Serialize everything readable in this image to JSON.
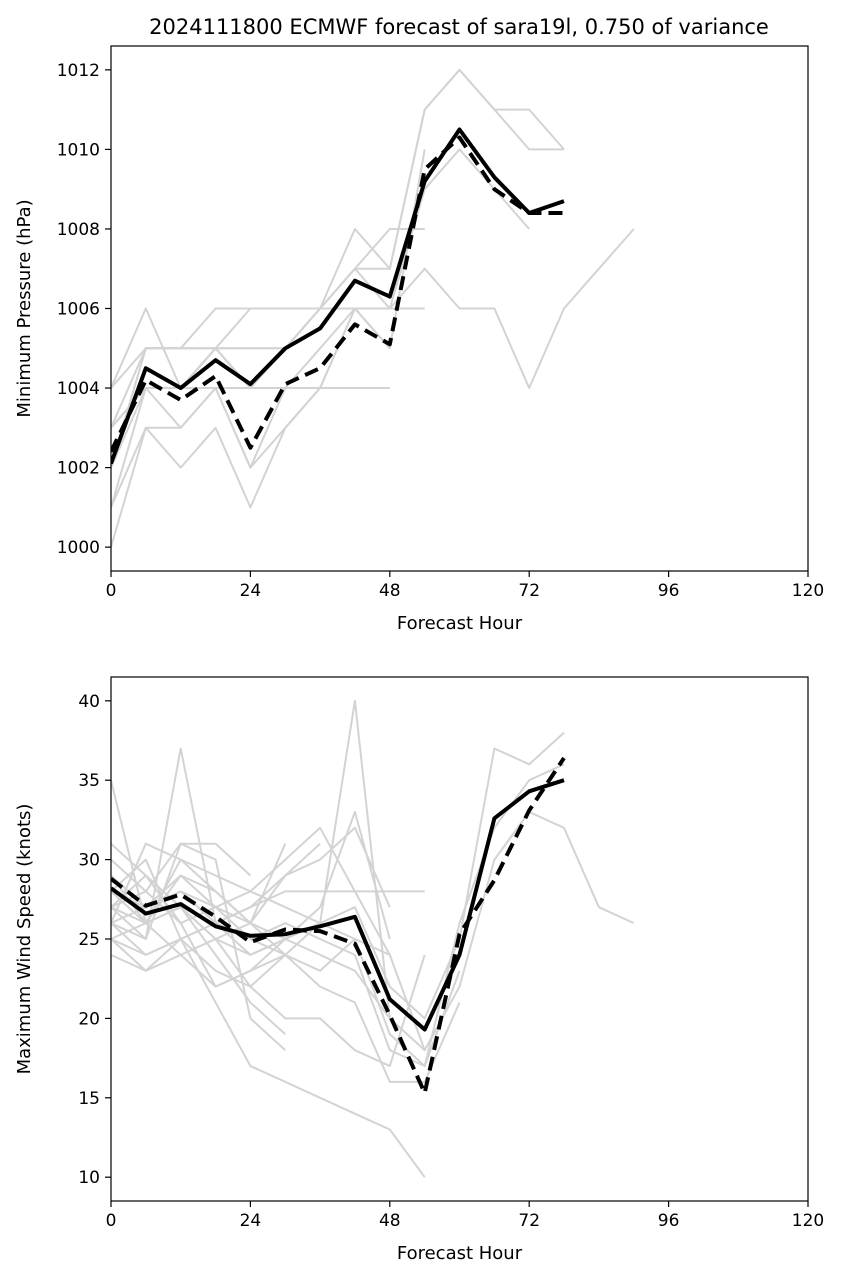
{
  "figure_title": "2024111800 ECMWF forecast of sara19l, 0.750 of variance",
  "colors": {
    "members": "#d3d3d3",
    "mean": "#000000",
    "axes": "#000000"
  },
  "chart_data": [
    {
      "type": "line",
      "title": "2024111800 ECMWF forecast of sara19l, 0.750 of variance",
      "xlabel": "Forecast Hour",
      "ylabel": "Minimum Pressure (hPa)",
      "xlim": [
        0,
        120
      ],
      "ylim": [
        999.4,
        1012.6
      ],
      "xticks": [
        0,
        24,
        48,
        72,
        96,
        120
      ],
      "xtick_labels": [
        "0",
        "24",
        "48",
        "72",
        "96",
        "120"
      ],
      "yticks": [
        1000,
        1002,
        1004,
        1006,
        1008,
        1010,
        1012
      ],
      "ytick_labels": [
        "1000",
        "1002",
        "1004",
        "1006",
        "1008",
        "1010",
        "1012"
      ],
      "grid": false,
      "legend": "none",
      "members": [
        {
          "x": [
            0,
            6,
            12,
            18,
            24,
            30,
            36,
            42,
            48,
            54,
            60,
            66,
            72,
            78
          ],
          "y": [
            1002,
            1005,
            1005,
            1005,
            1005,
            1005,
            1006,
            1008,
            1007,
            1011,
            1012,
            1011,
            1011,
            1010
          ]
        },
        {
          "x": [
            0,
            6,
            12,
            18,
            24,
            30,
            36,
            42,
            48,
            54,
            60,
            66,
            72,
            78
          ],
          "y": [
            1003,
            1004,
            1004,
            1005,
            1004,
            1005,
            1006,
            1007,
            1007,
            1011,
            1012,
            1011,
            1010,
            1010
          ]
        },
        {
          "x": [
            0,
            6,
            12,
            18,
            24,
            30,
            36,
            42,
            48,
            54,
            60,
            66,
            72
          ],
          "y": [
            1002,
            1005,
            1005,
            1005,
            1004,
            1005,
            1006,
            1007,
            1006,
            1009,
            1010,
            1009,
            1008
          ]
        },
        {
          "x": [
            0,
            6,
            12,
            18,
            24,
            30,
            36,
            42,
            48,
            54,
            60,
            66,
            72,
            78,
            84,
            90
          ],
          "y": [
            1004,
            1005,
            1005,
            1005,
            1005,
            1005,
            1006,
            1006,
            1006,
            1007,
            1006,
            1006,
            1004,
            1006,
            1007,
            1008
          ]
        },
        {
          "x": [
            0,
            6,
            12,
            18,
            24,
            30,
            36,
            42,
            48,
            54
          ],
          "y": [
            1003,
            1005,
            1005,
            1006,
            1006,
            1006,
            1006,
            1006,
            1006,
            1006
          ]
        },
        {
          "x": [
            0,
            6,
            12,
            18,
            24,
            30,
            36,
            42,
            48,
            54
          ],
          "y": [
            1004,
            1006,
            1004,
            1005,
            1006,
            1006,
            1006,
            1007,
            1008,
            1008
          ]
        },
        {
          "x": [
            0,
            6,
            12,
            18,
            24,
            30,
            36,
            42,
            48
          ],
          "y": [
            1001,
            1004,
            1004,
            1004,
            1004,
            1004,
            1004,
            1004,
            1004
          ]
        },
        {
          "x": [
            0,
            6,
            12,
            18,
            24,
            30,
            36,
            42,
            48,
            54
          ],
          "y": [
            1000,
            1003,
            1003,
            1004,
            1002,
            1003,
            1004,
            1006,
            1005,
            1010
          ]
        },
        {
          "x": [
            0,
            6,
            12,
            18,
            24,
            30,
            36,
            42,
            48
          ],
          "y": [
            1001,
            1003,
            1002,
            1003,
            1001,
            1003,
            1004,
            1006,
            1005
          ]
        },
        {
          "x": [
            0,
            6,
            12,
            18,
            24,
            30,
            36,
            42,
            48
          ],
          "y": [
            1002,
            1004,
            1003,
            1004,
            1002,
            1004,
            1005,
            1006,
            1005
          ]
        },
        {
          "x": [
            0,
            6,
            12,
            18,
            24,
            30
          ],
          "y": [
            1003,
            1004,
            1004,
            1005,
            1004,
            1005
          ]
        }
      ],
      "series": [
        {
          "style": "solid",
          "x": [
            0,
            6,
            12,
            18,
            24,
            30,
            36,
            42,
            48,
            54,
            60,
            66,
            72,
            78
          ],
          "y": [
            1002.1,
            1004.5,
            1004.0,
            1004.7,
            1004.1,
            1005.0,
            1005.5,
            1006.7,
            1006.3,
            1009.2,
            1010.5,
            1009.3,
            1008.4,
            1008.7
          ]
        },
        {
          "style": "dashed",
          "x": [
            0,
            6,
            12,
            18,
            24,
            30,
            36,
            42,
            48,
            54,
            60,
            66,
            72,
            78
          ],
          "y": [
            1002.4,
            1004.2,
            1003.7,
            1004.3,
            1002.5,
            1004.1,
            1004.5,
            1005.6,
            1005.1,
            1009.5,
            1010.3,
            1009.0,
            1008.4,
            1008.4
          ]
        }
      ]
    },
    {
      "type": "line",
      "title": "",
      "xlabel": "Forecast Hour",
      "ylabel": "Maximum Wind Speed (knots)",
      "xlim": [
        0,
        120
      ],
      "ylim": [
        8.5,
        41.5
      ],
      "xticks": [
        0,
        24,
        48,
        72,
        96,
        120
      ],
      "xtick_labels": [
        "0",
        "24",
        "48",
        "72",
        "96",
        "120"
      ],
      "yticks": [
        10,
        15,
        20,
        25,
        30,
        35,
        40
      ],
      "ytick_labels": [
        "10",
        "15",
        "20",
        "25",
        "30",
        "35",
        "40"
      ],
      "grid": false,
      "legend": "none",
      "members": [
        {
          "x": [
            0,
            6,
            12,
            18,
            24,
            30,
            36,
            42,
            48,
            54,
            60,
            66,
            72,
            78
          ],
          "y": [
            35,
            26,
            27,
            25,
            24,
            25,
            26,
            27,
            22,
            20,
            25,
            37,
            36,
            38
          ]
        },
        {
          "x": [
            0,
            6,
            12,
            18,
            24,
            30,
            36,
            42,
            48,
            54,
            60,
            66,
            72,
            78,
            84,
            90
          ],
          "y": [
            29,
            27,
            28,
            27,
            26,
            25,
            24,
            23,
            20,
            18,
            22,
            30,
            33,
            32,
            27,
            26
          ]
        },
        {
          "x": [
            0,
            6,
            12,
            18,
            24,
            30,
            36,
            42,
            48,
            54,
            60,
            66,
            72,
            78
          ],
          "y": [
            28,
            26,
            29,
            27,
            25,
            26,
            25,
            24,
            18,
            17,
            26,
            32,
            35,
            36
          ]
        },
        {
          "x": [
            0,
            6,
            12,
            18,
            24,
            30,
            36,
            42,
            48,
            54,
            60
          ],
          "y": [
            27,
            25,
            37,
            26,
            25,
            24,
            22,
            21,
            16,
            16,
            21
          ]
        },
        {
          "x": [
            0,
            6,
            12,
            18,
            24,
            30,
            36,
            42,
            48,
            54,
            60
          ],
          "y": [
            26,
            31,
            30,
            29,
            28,
            27,
            26,
            25,
            19,
            17,
            23
          ]
        },
        {
          "x": [
            0,
            6,
            12,
            18,
            24,
            30,
            36,
            42,
            48,
            54
          ],
          "y": [
            25,
            24,
            25,
            26,
            27,
            28,
            28,
            28,
            28,
            28
          ]
        },
        {
          "x": [
            0,
            6,
            12,
            18,
            24,
            30,
            36,
            42,
            48,
            54
          ],
          "y": [
            27,
            28,
            26,
            27,
            28,
            30,
            32,
            28,
            24,
            18
          ]
        },
        {
          "x": [
            0,
            6,
            12,
            18,
            24,
            30,
            36,
            42,
            48
          ],
          "y": [
            29,
            26,
            30,
            28,
            26,
            29,
            30,
            32,
            27
          ]
        },
        {
          "x": [
            0,
            6,
            12,
            18,
            24,
            30,
            36,
            42,
            48
          ],
          "y": [
            26,
            27,
            28,
            26,
            24,
            25,
            27,
            33,
            25
          ]
        },
        {
          "x": [
            0,
            6,
            12,
            18,
            24,
            30,
            36,
            42,
            48
          ],
          "y": [
            24,
            23,
            24,
            22,
            23,
            25,
            26,
            40,
            20
          ]
        },
        {
          "x": [
            0,
            6,
            12,
            18,
            24,
            30,
            36,
            42,
            48,
            54
          ],
          "y": [
            25,
            26,
            27,
            25,
            22,
            20,
            20,
            18,
            17,
            24
          ]
        },
        {
          "x": [
            0,
            6,
            12,
            18,
            24,
            30,
            36,
            42,
            48,
            54
          ],
          "y": [
            26,
            24,
            25,
            21,
            17,
            16,
            15,
            14,
            13,
            10
          ]
        },
        {
          "x": [
            0,
            6,
            12,
            18,
            24,
            30
          ],
          "y": [
            30,
            28,
            31,
            30,
            20,
            18
          ]
        },
        {
          "x": [
            0,
            6,
            12,
            18,
            24,
            30
          ],
          "y": [
            31,
            29,
            27,
            24,
            21,
            19
          ]
        },
        {
          "x": [
            0,
            6,
            12,
            18,
            24,
            30
          ],
          "y": [
            28,
            30,
            25,
            23,
            22,
            24
          ]
        },
        {
          "x": [
            0,
            6,
            12,
            18,
            24,
            30
          ],
          "y": [
            27,
            26,
            24,
            25,
            26,
            31
          ]
        },
        {
          "x": [
            0,
            6,
            12,
            18,
            24
          ],
          "y": [
            26,
            25,
            31,
            31,
            29
          ]
        },
        {
          "x": [
            0,
            6,
            12,
            18,
            24,
            30,
            36
          ],
          "y": [
            27,
            29,
            26,
            22,
            23,
            24,
            26
          ]
        },
        {
          "x": [
            0,
            6,
            12,
            18,
            24,
            30,
            36
          ],
          "y": [
            25,
            23,
            25,
            26,
            27,
            29,
            31
          ]
        },
        {
          "x": [
            0,
            6,
            12,
            18,
            24,
            30,
            36,
            42,
            48
          ],
          "y": [
            28,
            27,
            29,
            28,
            26,
            24,
            23,
            25,
            24
          ]
        }
      ],
      "series": [
        {
          "style": "solid",
          "x": [
            0,
            6,
            12,
            18,
            24,
            30,
            36,
            42,
            48,
            54,
            60,
            66,
            72,
            78
          ],
          "y": [
            28.2,
            26.6,
            27.2,
            25.8,
            25.2,
            25.3,
            25.8,
            26.4,
            21.2,
            19.3,
            24.0,
            32.6,
            34.3,
            35.0
          ]
        },
        {
          "style": "dashed",
          "x": [
            0,
            6,
            12,
            18,
            24,
            30,
            36,
            42,
            48,
            54,
            60,
            66,
            72,
            78
          ],
          "y": [
            28.8,
            27.1,
            27.8,
            26.4,
            24.8,
            25.6,
            25.5,
            24.7,
            20.2,
            15.3,
            25.3,
            28.7,
            33.1,
            36.4
          ]
        }
      ]
    }
  ]
}
